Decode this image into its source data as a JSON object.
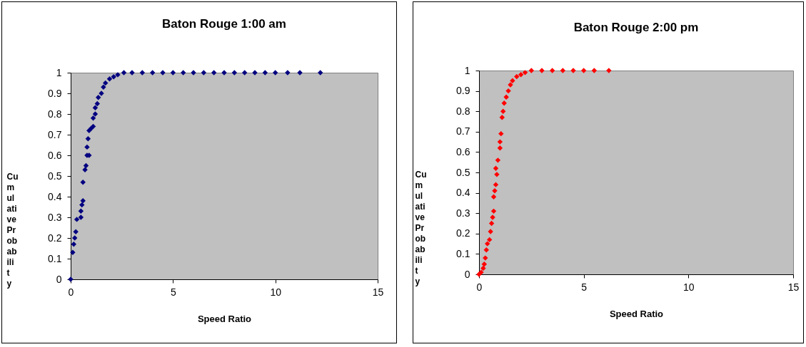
{
  "chart_data": [
    {
      "type": "scatter",
      "title": "Baton Rouge 1:00 am",
      "xlabel": "Speed Ratio",
      "ylabel": "Cumulative Probability",
      "marker": "diamond",
      "legend": false,
      "grid": false,
      "xlim": [
        0,
        15
      ],
      "xticks": [
        0,
        5,
        10,
        15
      ],
      "ylim": [
        0,
        1
      ],
      "yticks": [
        0,
        0.1,
        0.2,
        0.3,
        0.4,
        0.5,
        0.6,
        0.7,
        0.8,
        0.9,
        1
      ],
      "x": [
        0,
        0.1,
        0.15,
        0.2,
        0.25,
        0.3,
        0.5,
        0.5,
        0.55,
        0.6,
        0.6,
        0.7,
        0.75,
        0.8,
        0.8,
        0.9,
        0.85,
        0.9,
        1.0,
        1.1,
        1.1,
        1.2,
        1.2,
        1.3,
        1.35,
        1.5,
        1.6,
        1.7,
        1.9,
        2.1,
        2.3,
        2.6,
        3,
        3.5,
        4,
        4.5,
        5,
        5.5,
        6,
        6.5,
        7,
        7.5,
        8,
        8.5,
        9,
        9.5,
        10,
        10.6,
        11.2,
        12.2
      ],
      "series": [
        {
          "color": "#000080",
          "values": [
            0,
            0.13,
            0.17,
            0.2,
            0.23,
            0.29,
            0.3,
            0.33,
            0.36,
            0.38,
            0.47,
            0.53,
            0.55,
            0.6,
            0.64,
            0.6,
            0.68,
            0.72,
            0.73,
            0.74,
            0.78,
            0.8,
            0.83,
            0.85,
            0.88,
            0.9,
            0.93,
            0.95,
            0.97,
            0.98,
            0.99,
            1,
            1,
            1,
            1,
            1,
            1,
            1,
            1,
            1,
            1,
            1,
            1,
            1,
            1,
            1,
            1,
            1,
            1,
            1
          ]
        }
      ]
    },
    {
      "type": "scatter",
      "title": "Baton Rouge 2:00 pm",
      "xlabel": "Speed Ratio",
      "ylabel": "Cumulative Probability",
      "marker": "diamond",
      "legend": false,
      "grid": false,
      "xlim": [
        0,
        15
      ],
      "xticks": [
        0,
        5,
        10,
        15
      ],
      "ylim": [
        0,
        1
      ],
      "yticks": [
        0,
        0.1,
        0.2,
        0.3,
        0.4,
        0.5,
        0.6,
        0.7,
        0.8,
        0.9,
        1
      ],
      "x": [
        0,
        0.1,
        0.2,
        0.25,
        0.3,
        0.35,
        0.4,
        0.5,
        0.55,
        0.6,
        0.65,
        0.7,
        0.7,
        0.75,
        0.8,
        0.85,
        0.8,
        0.9,
        1.0,
        1.0,
        1.05,
        1.1,
        1.15,
        1.2,
        1.3,
        1.4,
        1.5,
        1.6,
        1.8,
        2.0,
        2.2,
        2.5,
        3,
        3.5,
        4,
        4.5,
        5,
        5.5,
        6.2
      ],
      "series": [
        {
          "color": "#ff0000",
          "values": [
            0,
            0.01,
            0.03,
            0.05,
            0.08,
            0.12,
            0.15,
            0.17,
            0.21,
            0.25,
            0.28,
            0.31,
            0.38,
            0.41,
            0.44,
            0.49,
            0.52,
            0.56,
            0.62,
            0.65,
            0.69,
            0.77,
            0.8,
            0.84,
            0.87,
            0.9,
            0.93,
            0.95,
            0.97,
            0.98,
            0.99,
            1,
            1,
            1,
            1,
            1,
            1,
            1,
            1
          ]
        }
      ]
    }
  ]
}
